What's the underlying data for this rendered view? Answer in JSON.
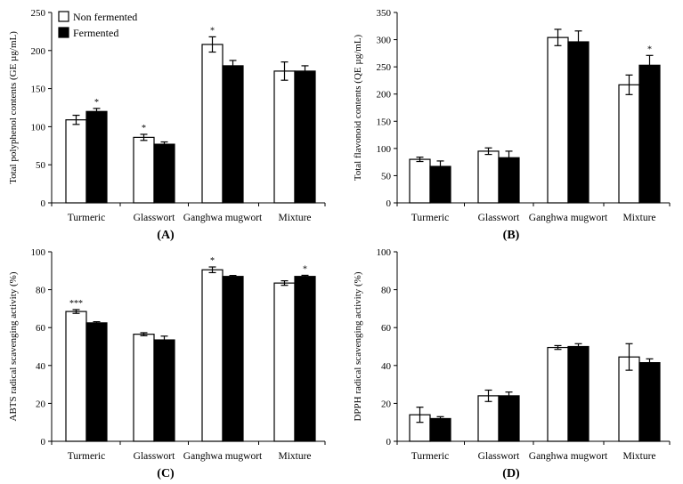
{
  "legend": {
    "items": [
      "Non fermented",
      "Fermented"
    ],
    "placement": "top-left of panel A"
  },
  "colors": {
    "non_fermented": "#ffffff",
    "fermented": "#000000",
    "axis": "#000000"
  },
  "chart_data": [
    {
      "type": "bar",
      "panel": "(A)",
      "ylabel": "Total polyphenol contents (GE µg/mL)",
      "ylim": [
        0,
        250
      ],
      "yticks": [
        0,
        50,
        100,
        150,
        200,
        250
      ],
      "categories": [
        "Turmeric",
        "Glasswort",
        "Ganghwa mugwort",
        "Mixture"
      ],
      "series": [
        {
          "name": "Non fermented",
          "values": [
            109,
            86,
            208,
            173
          ],
          "errors": [
            6,
            4,
            10,
            12
          ],
          "marks": [
            "",
            "*",
            "*",
            ""
          ]
        },
        {
          "name": "Fermented",
          "values": [
            120,
            77,
            180,
            173
          ],
          "errors": [
            4,
            3,
            7,
            7
          ],
          "marks": [
            "*",
            "",
            "",
            ""
          ]
        }
      ]
    },
    {
      "type": "bar",
      "panel": "(B)",
      "ylabel": "Total flavonoid contents (QE µg/mL)",
      "ylim": [
        0,
        350
      ],
      "yticks": [
        0,
        50,
        100,
        150,
        200,
        250,
        300,
        350
      ],
      "categories": [
        "Turmeric",
        "Glasswort",
        "Ganghwa mugwort",
        "Mixture"
      ],
      "series": [
        {
          "name": "Non fermented",
          "values": [
            80,
            95,
            304,
            217
          ],
          "errors": [
            4,
            6,
            15,
            18
          ],
          "marks": [
            "",
            "",
            "",
            ""
          ]
        },
        {
          "name": "Fermented",
          "values": [
            67,
            83,
            296,
            253
          ],
          "errors": [
            10,
            12,
            20,
            18
          ],
          "marks": [
            "",
            "",
            "",
            "*"
          ]
        }
      ]
    },
    {
      "type": "bar",
      "panel": "(C)",
      "ylabel": "ABTS radical scavenging activity (%)",
      "ylim": [
        0,
        100
      ],
      "yticks": [
        0,
        20,
        40,
        60,
        80,
        100
      ],
      "categories": [
        "Turmeric",
        "Glasswort",
        "Ganghwa mugwort",
        "Mixture"
      ],
      "series": [
        {
          "name": "Non fermented",
          "values": [
            68.5,
            56.5,
            90.5,
            83.5
          ],
          "errors": [
            1,
            0.8,
            1.5,
            1.2
          ],
          "marks": [
            "***",
            "",
            "*",
            ""
          ]
        },
        {
          "name": "Fermented",
          "values": [
            62.5,
            53.5,
            87,
            87
          ],
          "errors": [
            0.6,
            2,
            0.5,
            0.6
          ],
          "marks": [
            "",
            "",
            "",
            "*"
          ]
        }
      ]
    },
    {
      "type": "bar",
      "panel": "(D)",
      "ylabel": "DPPH radical scavenging activity (%)",
      "ylim": [
        0,
        100
      ],
      "yticks": [
        0,
        20,
        40,
        60,
        80,
        100
      ],
      "categories": [
        "Turmeric",
        "Glasswort",
        "Ganghwa mugwort",
        "Mixture"
      ],
      "series": [
        {
          "name": "Non fermented",
          "values": [
            14,
            24,
            49.5,
            44.5
          ],
          "errors": [
            4,
            3,
            1,
            7
          ],
          "marks": [
            "",
            "",
            "",
            ""
          ]
        },
        {
          "name": "Fermented",
          "values": [
            12,
            24,
            50,
            41.5
          ],
          "errors": [
            1,
            2,
            1.5,
            2
          ],
          "marks": [
            "",
            "",
            "",
            ""
          ]
        }
      ]
    }
  ]
}
